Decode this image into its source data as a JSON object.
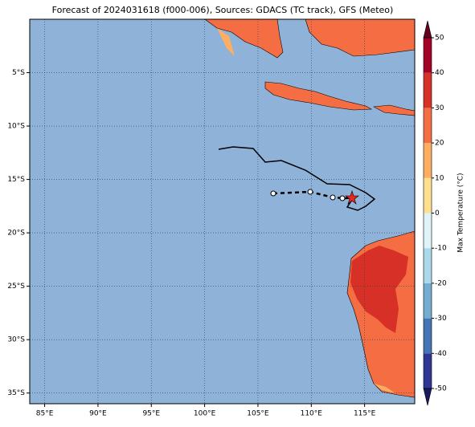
{
  "map": {
    "title": "Forecast of 2024031618 (f000-006), Sources: GDACS (TC track), GFS (Meteo)",
    "lonlim": [
      83.6,
      119.7
    ],
    "latlim": [
      -36,
      0
    ],
    "lon_ticks": [
      {
        "value": 85,
        "label": "85°E"
      },
      {
        "value": 90,
        "label": "90°E"
      },
      {
        "value": 95,
        "label": "95°E"
      },
      {
        "value": 100,
        "label": "100°E"
      },
      {
        "value": 105,
        "label": "105°E"
      },
      {
        "value": 110,
        "label": "110°E"
      },
      {
        "value": 115,
        "label": "115°E"
      }
    ],
    "lat_ticks": [
      {
        "value": -5,
        "label": "5°S"
      },
      {
        "value": -10,
        "label": "10°S"
      },
      {
        "value": -15,
        "label": "15°S"
      },
      {
        "value": -20,
        "label": "20°S"
      },
      {
        "value": -25,
        "label": "25°S"
      },
      {
        "value": -30,
        "label": "30°S"
      },
      {
        "value": -35,
        "label": "35°S"
      }
    ],
    "grid": true,
    "colorbar": {
      "label": "Max Temperature (°C)",
      "lim": [
        -50,
        50
      ],
      "ticks": [
        50,
        40,
        30,
        20,
        10,
        0,
        -10,
        -20,
        -30,
        -40,
        -50
      ],
      "levels": [
        -50,
        -40,
        -30,
        -20,
        -10,
        0,
        10,
        20,
        30,
        40,
        50
      ],
      "colors": [
        "#313695",
        "#4575b4",
        "#74add1",
        "#abd9e9",
        "#e0f3f8",
        "#fee090",
        "#fdae61",
        "#f46d43",
        "#d73027",
        "#a50026"
      ]
    }
  }
}
